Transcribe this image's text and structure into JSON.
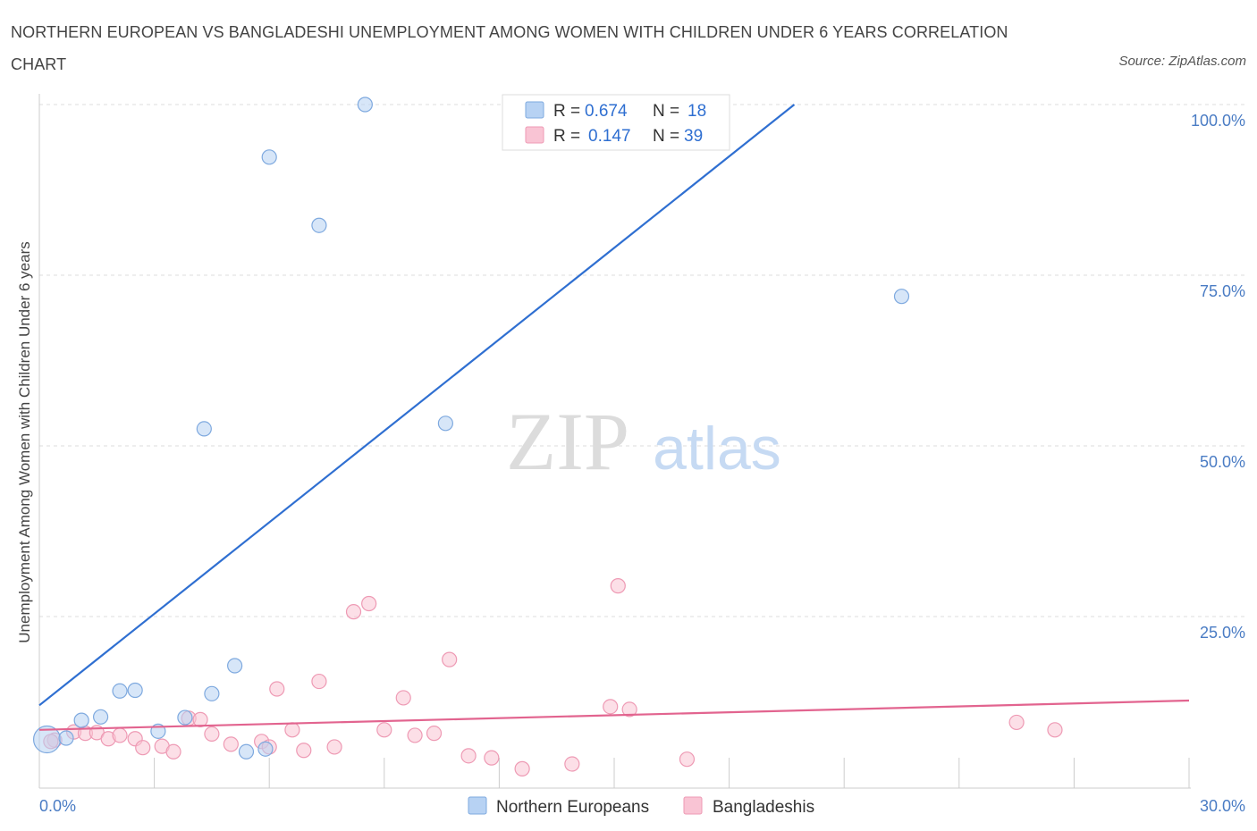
{
  "title": "NORTHERN EUROPEAN VS BANGLADESHI UNEMPLOYMENT AMONG WOMEN WITH CHILDREN UNDER 6 YEARS CORRELATION CHART",
  "source": "Source: ZipAtlas.com",
  "watermark": {
    "zip": "ZIP",
    "atlas": "atlas"
  },
  "colors": {
    "blue_fill": "#b7d2f3",
    "blue_stroke": "#7ea9df",
    "blue_line": "#2f6fd1",
    "pink_fill": "#f9c4d4",
    "pink_stroke": "#ee9ab4",
    "pink_line": "#e2648f",
    "grid": "#dddddd",
    "axis_label": "#4a7cc4"
  },
  "legend": {
    "rows": [
      {
        "r_label": "R =",
        "r_value": "0.674",
        "n_label": "N =",
        "n_value": "18"
      },
      {
        "r_label": "R =",
        "r_value": "0.147",
        "n_label": "N =",
        "n_value": "39"
      }
    ]
  },
  "chart_data": {
    "type": "scatter",
    "title": "NORTHERN EUROPEAN VS BANGLADESHI UNEMPLOYMENT AMONG WOMEN WITH CHILDREN UNDER 6 YEARS CORRELATION CHART",
    "xlabel": "",
    "ylabel": "Unemployment Among Women with Children Under 6 years",
    "xlim": [
      0,
      30
    ],
    "ylim": [
      0,
      100
    ],
    "x_tick_labels": [
      "0.0%",
      "30.0%"
    ],
    "y_ticks": [
      25,
      50,
      75,
      100
    ],
    "y_tick_labels": [
      "25.0%",
      "50.0%",
      "75.0%",
      "100.0%"
    ],
    "grid": true,
    "series": [
      {
        "name": "Northern Europeans",
        "color": "#b7d2f3",
        "points": [
          {
            "x": 0.2,
            "y": 7.0,
            "big": true
          },
          {
            "x": 0.7,
            "y": 7.2
          },
          {
            "x": 1.1,
            "y": 9.8
          },
          {
            "x": 1.6,
            "y": 10.3
          },
          {
            "x": 2.1,
            "y": 14.1
          },
          {
            "x": 2.5,
            "y": 14.2
          },
          {
            "x": 3.1,
            "y": 8.2
          },
          {
            "x": 3.8,
            "y": 10.2
          },
          {
            "x": 4.3,
            "y": 52.5
          },
          {
            "x": 4.5,
            "y": 13.7
          },
          {
            "x": 5.1,
            "y": 17.8
          },
          {
            "x": 5.4,
            "y": 5.2
          },
          {
            "x": 5.9,
            "y": 5.6
          },
          {
            "x": 6.0,
            "y": 92.3
          },
          {
            "x": 7.3,
            "y": 82.3
          },
          {
            "x": 8.5,
            "y": 100.0
          },
          {
            "x": 10.6,
            "y": 53.3
          },
          {
            "x": 22.5,
            "y": 71.9
          }
        ],
        "trend": {
          "x1": 0,
          "y1": 12.0,
          "x2": 19.7,
          "y2": 100.0
        }
      },
      {
        "name": "Bangladeshis",
        "color": "#f9c4d4",
        "points": [
          {
            "x": 0.4,
            "y": 6.9
          },
          {
            "x": 0.9,
            "y": 8.1
          },
          {
            "x": 1.2,
            "y": 7.9
          },
          {
            "x": 1.5,
            "y": 8.0
          },
          {
            "x": 1.8,
            "y": 7.1
          },
          {
            "x": 2.1,
            "y": 7.6
          },
          {
            "x": 2.5,
            "y": 7.1
          },
          {
            "x": 2.7,
            "y": 5.8
          },
          {
            "x": 3.2,
            "y": 6.0
          },
          {
            "x": 3.5,
            "y": 5.2
          },
          {
            "x": 3.9,
            "y": 10.1
          },
          {
            "x": 4.2,
            "y": 9.9
          },
          {
            "x": 4.5,
            "y": 7.8
          },
          {
            "x": 5.0,
            "y": 6.3
          },
          {
            "x": 5.8,
            "y": 6.7
          },
          {
            "x": 6.0,
            "y": 5.9
          },
          {
            "x": 6.2,
            "y": 14.4
          },
          {
            "x": 6.6,
            "y": 8.4
          },
          {
            "x": 6.9,
            "y": 5.4
          },
          {
            "x": 7.3,
            "y": 15.5
          },
          {
            "x": 7.7,
            "y": 5.9
          },
          {
            "x": 8.2,
            "y": 25.7
          },
          {
            "x": 8.6,
            "y": 26.9
          },
          {
            "x": 9.0,
            "y": 8.4
          },
          {
            "x": 9.5,
            "y": 13.1
          },
          {
            "x": 9.8,
            "y": 7.6
          },
          {
            "x": 10.3,
            "y": 7.9
          },
          {
            "x": 10.7,
            "y": 18.7
          },
          {
            "x": 11.2,
            "y": 4.6
          },
          {
            "x": 11.8,
            "y": 4.3
          },
          {
            "x": 12.6,
            "y": 2.7
          },
          {
            "x": 13.9,
            "y": 3.4
          },
          {
            "x": 14.9,
            "y": 11.8
          },
          {
            "x": 15.1,
            "y": 29.5
          },
          {
            "x": 15.4,
            "y": 11.4
          },
          {
            "x": 16.9,
            "y": 4.1
          },
          {
            "x": 25.5,
            "y": 9.5
          },
          {
            "x": 26.5,
            "y": 8.4
          },
          {
            "x": 0.3,
            "y": 6.7
          }
        ],
        "trend": {
          "x1": 0,
          "y1": 8.4,
          "x2": 30,
          "y2": 12.7
        }
      }
    ],
    "legend_entries": [
      "Northern Europeans",
      "Bangladeshis"
    ],
    "legend_position": "bottom-center"
  }
}
